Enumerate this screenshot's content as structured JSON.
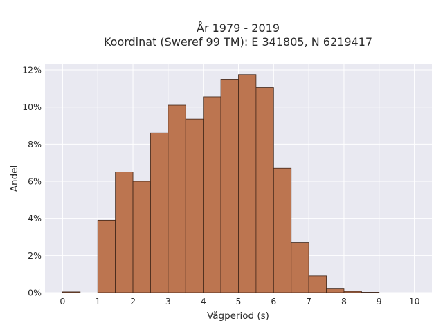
{
  "chart_data": {
    "type": "bar",
    "title_line1": "År 1979 - 2019",
    "title_line2": "Koordinat (Sweref 99 TM): E 341805, N 6219417",
    "xlabel": "Vågperiod (s)",
    "ylabel": "Andel",
    "xlim": [
      -0.5,
      10.5
    ],
    "ylim": [
      0,
      12.3
    ],
    "xticks": [
      0,
      1,
      2,
      3,
      4,
      5,
      6,
      7,
      8,
      9,
      10
    ],
    "yticks": [
      0,
      2,
      4,
      6,
      8,
      10,
      12
    ],
    "ytick_suffix": "%",
    "bin_width": 0.5,
    "bins": [
      {
        "x0": 0.0,
        "value": 0.04
      },
      {
        "x0": 0.5,
        "value": 0.0
      },
      {
        "x0": 1.0,
        "value": 3.9
      },
      {
        "x0": 1.5,
        "value": 6.5
      },
      {
        "x0": 2.0,
        "value": 6.0
      },
      {
        "x0": 2.5,
        "value": 8.6
      },
      {
        "x0": 3.0,
        "value": 10.1
      },
      {
        "x0": 3.5,
        "value": 9.35
      },
      {
        "x0": 4.0,
        "value": 10.55
      },
      {
        "x0": 4.5,
        "value": 11.5
      },
      {
        "x0": 5.0,
        "value": 11.75
      },
      {
        "x0": 5.5,
        "value": 11.05
      },
      {
        "x0": 6.0,
        "value": 6.7
      },
      {
        "x0": 6.5,
        "value": 2.7
      },
      {
        "x0": 7.0,
        "value": 0.9
      },
      {
        "x0": 7.5,
        "value": 0.2
      },
      {
        "x0": 8.0,
        "value": 0.07
      },
      {
        "x0": 8.5,
        "value": 0.02
      }
    ],
    "grid": true,
    "colors": {
      "bar_fill": "#bc7550",
      "bar_edge": "#3f2518",
      "plot_bg": "#e9e9f1",
      "grid": "#ffffff"
    }
  }
}
